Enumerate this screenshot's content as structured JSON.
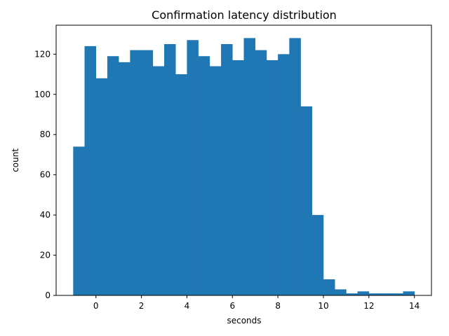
{
  "chart_data": {
    "type": "bar",
    "title": "Confirmation latency distribution",
    "xlabel": "seconds",
    "ylabel": "count",
    "bin_edges": [
      -1.0,
      -0.5,
      0.0,
      0.5,
      1.0,
      1.5,
      2.0,
      2.5,
      3.0,
      3.5,
      4.0,
      4.5,
      5.0,
      5.5,
      6.0,
      6.5,
      7.0,
      7.5,
      8.0,
      8.5,
      9.0,
      9.5,
      10.0,
      10.5,
      11.0,
      11.5,
      12.0,
      12.5,
      13.0,
      13.5,
      14.0
    ],
    "values": [
      74,
      124,
      108,
      119,
      116,
      122,
      122,
      114,
      125,
      110,
      127,
      119,
      114,
      125,
      117,
      128,
      122,
      117,
      120,
      128,
      94,
      40,
      8,
      3,
      1,
      2,
      1,
      1,
      1,
      2
    ],
    "xlim": [
      -1.75,
      14.75
    ],
    "ylim": [
      0,
      134.4
    ],
    "xticks": [
      0,
      2,
      4,
      6,
      8,
      10,
      12,
      14
    ],
    "yticks": [
      0,
      20,
      40,
      60,
      80,
      100,
      120
    ],
    "bar_color": "#1f77b4",
    "grid": false,
    "legend": "none"
  }
}
